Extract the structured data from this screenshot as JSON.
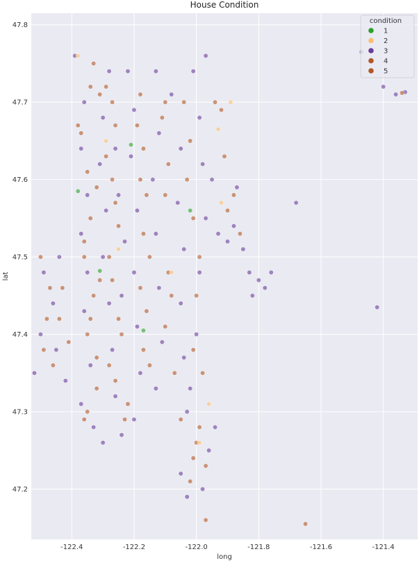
{
  "chart_data": {
    "type": "scatter",
    "title": "House Condition",
    "xlabel": "long",
    "ylabel": "lat",
    "xlim": [
      -122.53,
      -121.29
    ],
    "ylim": [
      47.135,
      47.815
    ],
    "x_ticks": [
      "-122.4",
      "-122.2",
      "-122.0",
      "-121.8",
      "-121.6",
      "-121.4"
    ],
    "x_tick_values": [
      -122.4,
      -122.2,
      -122.0,
      -121.8,
      -121.6,
      -121.4
    ],
    "y_ticks": [
      "47.2",
      "47.3",
      "47.4",
      "47.5",
      "47.6",
      "47.7",
      "47.8"
    ],
    "y_tick_values": [
      47.2,
      47.3,
      47.4,
      47.5,
      47.6,
      47.7,
      47.8
    ],
    "grid": true,
    "legend": {
      "title": "condition",
      "placement": "top-right",
      "entries": [
        {
          "label": "1",
          "color": "#2ca02c"
        },
        {
          "label": "2",
          "color": "#fdbf6f"
        },
        {
          "label": "3",
          "color": "#6a3d9a"
        },
        {
          "label": "4",
          "color": "#b15928"
        },
        {
          "label": "5",
          "color": "#b15928"
        }
      ]
    },
    "series": [
      {
        "name": "1",
        "color": "#2ca02c",
        "points": [
          [
            -122.21,
            47.645
          ],
          [
            -122.31,
            47.482
          ],
          [
            -122.38,
            47.585
          ],
          [
            -122.17,
            47.405
          ],
          [
            -122.02,
            47.56
          ]
        ]
      },
      {
        "name": "2",
        "color": "#fdbf6f",
        "points": [
          [
            -121.92,
            47.57
          ],
          [
            -121.89,
            47.7
          ],
          [
            -122.08,
            47.48
          ],
          [
            -121.96,
            47.31
          ],
          [
            -122.25,
            47.51
          ],
          [
            -121.99,
            47.26
          ],
          [
            -122.38,
            47.76
          ],
          [
            -121.93,
            47.665
          ],
          [
            -122.29,
            47.65
          ]
        ]
      },
      {
        "name": "3",
        "color": "#6a3d9a",
        "points": [
          [
            -122.39,
            47.76
          ],
          [
            -122.36,
            47.7
          ],
          [
            -122.37,
            47.64
          ],
          [
            -122.35,
            47.58
          ],
          [
            -122.37,
            47.53
          ],
          [
            -122.35,
            47.48
          ],
          [
            -122.36,
            47.43
          ],
          [
            -122.34,
            47.36
          ],
          [
            -122.37,
            47.31
          ],
          [
            -122.33,
            47.28
          ],
          [
            -122.3,
            47.26
          ],
          [
            -122.28,
            47.74
          ],
          [
            -122.3,
            47.68
          ],
          [
            -122.31,
            47.62
          ],
          [
            -122.29,
            47.56
          ],
          [
            -122.3,
            47.5
          ],
          [
            -122.28,
            47.44
          ],
          [
            -122.27,
            47.38
          ],
          [
            -122.26,
            47.32
          ],
          [
            -122.24,
            47.27
          ],
          [
            -122.22,
            47.74
          ],
          [
            -122.2,
            47.69
          ],
          [
            -122.21,
            47.63
          ],
          [
            -122.19,
            47.56
          ],
          [
            -122.2,
            47.48
          ],
          [
            -122.19,
            47.41
          ],
          [
            -122.18,
            47.35
          ],
          [
            -122.2,
            47.29
          ],
          [
            -122.13,
            47.74
          ],
          [
            -122.12,
            47.66
          ],
          [
            -122.14,
            47.6
          ],
          [
            -122.13,
            47.53
          ],
          [
            -122.12,
            47.46
          ],
          [
            -122.11,
            47.39
          ],
          [
            -122.13,
            47.33
          ],
          [
            -122.08,
            47.71
          ],
          [
            -122.05,
            47.64
          ],
          [
            -122.06,
            47.57
          ],
          [
            -122.04,
            47.51
          ],
          [
            -122.05,
            47.44
          ],
          [
            -122.04,
            47.37
          ],
          [
            -122.03,
            47.3
          ],
          [
            -122.01,
            47.74
          ],
          [
            -121.99,
            47.68
          ],
          [
            -121.98,
            47.62
          ],
          [
            -121.97,
            47.55
          ],
          [
            -121.99,
            47.48
          ],
          [
            -122.0,
            47.4
          ],
          [
            -122.02,
            47.33
          ],
          [
            -121.98,
            47.2
          ],
          [
            -121.97,
            47.76
          ],
          [
            -121.95,
            47.6
          ],
          [
            -121.93,
            47.53
          ],
          [
            -121.9,
            47.52
          ],
          [
            -121.88,
            47.54
          ],
          [
            -121.83,
            47.48
          ],
          [
            -121.8,
            47.47
          ],
          [
            -121.78,
            47.46
          ],
          [
            -121.82,
            47.45
          ],
          [
            -121.85,
            47.51
          ],
          [
            -121.76,
            47.48
          ],
          [
            -121.68,
            47.57
          ],
          [
            -121.42,
            47.435
          ],
          [
            -121.47,
            47.765
          ],
          [
            -121.4,
            47.72
          ],
          [
            -121.36,
            47.71
          ],
          [
            -121.33,
            47.713
          ],
          [
            -122.52,
            47.35
          ],
          [
            -122.5,
            47.4
          ],
          [
            -122.46,
            47.44
          ],
          [
            -122.49,
            47.48
          ],
          [
            -122.45,
            47.38
          ],
          [
            -122.44,
            47.5
          ],
          [
            -122.42,
            47.34
          ],
          [
            -122.24,
            47.45
          ],
          [
            -122.23,
            47.52
          ],
          [
            -122.25,
            47.58
          ],
          [
            -122.26,
            47.64
          ],
          [
            -122.05,
            47.22
          ],
          [
            -122.03,
            47.19
          ],
          [
            -121.94,
            47.28
          ],
          [
            -121.96,
            47.25
          ],
          [
            -121.87,
            47.59
          ]
        ]
      },
      {
        "name": "4",
        "color": "#b15928",
        "points": [
          [
            -122.33,
            47.75
          ],
          [
            -122.31,
            47.71
          ],
          [
            -122.38,
            47.67
          ],
          [
            -122.35,
            47.61
          ],
          [
            -122.34,
            47.55
          ],
          [
            -122.36,
            47.5
          ],
          [
            -122.33,
            47.45
          ],
          [
            -122.35,
            47.4
          ],
          [
            -122.32,
            47.33
          ],
          [
            -122.36,
            47.29
          ],
          [
            -122.29,
            47.72
          ],
          [
            -122.26,
            47.67
          ],
          [
            -122.27,
            47.6
          ],
          [
            -122.25,
            47.54
          ],
          [
            -122.27,
            47.47
          ],
          [
            -122.24,
            47.4
          ],
          [
            -122.26,
            47.34
          ],
          [
            -122.23,
            47.29
          ],
          [
            -122.18,
            47.71
          ],
          [
            -122.17,
            47.64
          ],
          [
            -122.16,
            47.58
          ],
          [
            -122.15,
            47.5
          ],
          [
            -122.16,
            47.43
          ],
          [
            -122.15,
            47.36
          ],
          [
            -122.1,
            47.7
          ],
          [
            -122.09,
            47.62
          ],
          [
            -122.08,
            47.45
          ],
          [
            -122.07,
            47.35
          ],
          [
            -122.02,
            47.65
          ],
          [
            -122.01,
            47.55
          ],
          [
            -122.0,
            47.45
          ],
          [
            -121.98,
            47.35
          ],
          [
            -121.94,
            47.7
          ],
          [
            -121.9,
            47.56
          ],
          [
            -121.86,
            47.53
          ],
          [
            -122.46,
            47.36
          ],
          [
            -122.48,
            47.42
          ],
          [
            -122.43,
            47.46
          ],
          [
            -122.5,
            47.5
          ],
          [
            -122.41,
            47.39
          ],
          [
            -122.02,
            47.21
          ],
          [
            -121.97,
            47.23
          ],
          [
            -121.65,
            47.155
          ],
          [
            -121.34,
            47.712
          ],
          [
            -121.97,
            47.16
          ],
          [
            -122.0,
            47.26
          ],
          [
            -121.91,
            47.63
          ]
        ]
      },
      {
        "name": "5",
        "color": "#b15928",
        "points": [
          [
            -122.34,
            47.72
          ],
          [
            -122.37,
            47.66
          ],
          [
            -122.32,
            47.59
          ],
          [
            -122.36,
            47.52
          ],
          [
            -122.31,
            47.47
          ],
          [
            -122.34,
            47.42
          ],
          [
            -122.32,
            47.37
          ],
          [
            -122.35,
            47.3
          ],
          [
            -122.27,
            47.7
          ],
          [
            -122.29,
            47.63
          ],
          [
            -122.26,
            47.57
          ],
          [
            -122.28,
            47.5
          ],
          [
            -122.25,
            47.42
          ],
          [
            -122.28,
            47.36
          ],
          [
            -122.22,
            47.31
          ],
          [
            -122.19,
            47.67
          ],
          [
            -122.18,
            47.6
          ],
          [
            -122.17,
            47.53
          ],
          [
            -122.18,
            47.46
          ],
          [
            -122.17,
            47.38
          ],
          [
            -122.11,
            47.68
          ],
          [
            -122.1,
            47.58
          ],
          [
            -122.09,
            47.48
          ],
          [
            -122.1,
            47.41
          ],
          [
            -122.04,
            47.7
          ],
          [
            -122.03,
            47.6
          ],
          [
            -121.99,
            47.5
          ],
          [
            -122.01,
            47.38
          ],
          [
            -121.92,
            47.69
          ],
          [
            -121.88,
            47.58
          ],
          [
            -122.47,
            47.46
          ],
          [
            -122.44,
            47.42
          ],
          [
            -122.49,
            47.38
          ],
          [
            -122.05,
            47.29
          ],
          [
            -121.99,
            47.28
          ],
          [
            -122.01,
            47.24
          ]
        ]
      }
    ]
  }
}
